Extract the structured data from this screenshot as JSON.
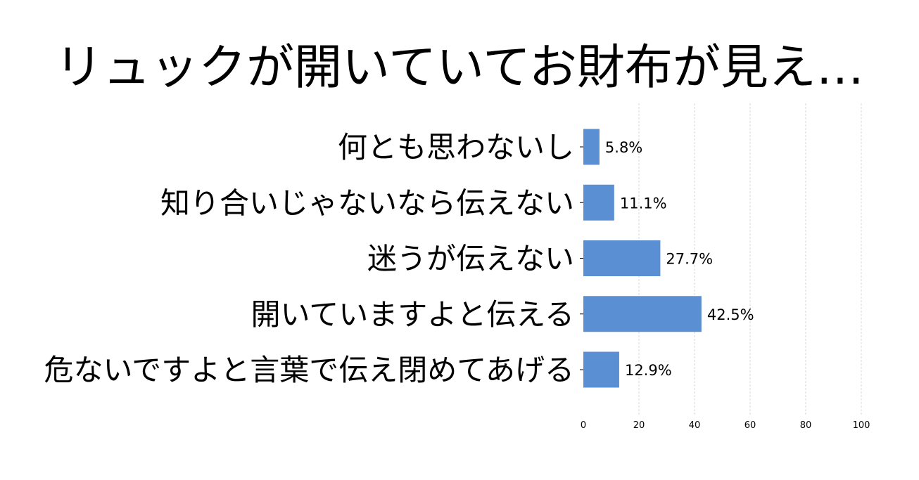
{
  "chart_data": {
    "type": "bar",
    "orientation": "horizontal",
    "title": "リュックが開いていてお財布が見え…",
    "categories": [
      "何とも思わないし",
      "知り合いじゃないなら伝えない",
      "迷うが伝えない",
      "開いていますよと伝える",
      "危ないですよと言葉で伝え閉めてあげる"
    ],
    "values": [
      5.8,
      11.1,
      27.7,
      42.5,
      12.9
    ],
    "value_labels": [
      "5.8%",
      "11.1%",
      "27.7%",
      "42.5%",
      "12.9%"
    ],
    "xlim": [
      0,
      100
    ],
    "xticks": [
      0,
      20,
      40,
      60,
      80,
      100
    ],
    "grid": "vertical dashed",
    "bar_color": "#5b8fd4",
    "grid_color": "#cfcfcf"
  }
}
